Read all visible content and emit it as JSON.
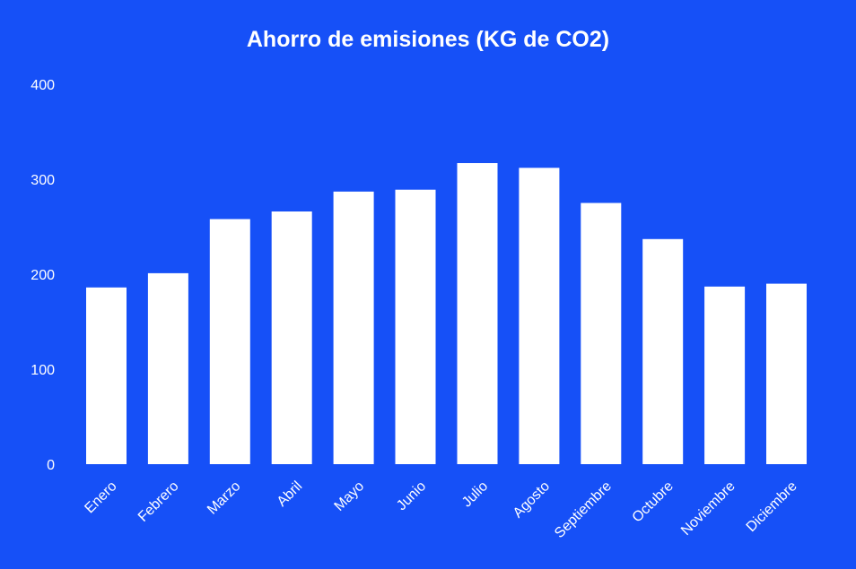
{
  "chart_data": {
    "type": "bar",
    "title": "Ahorro de emisiones (KG de CO2)",
    "xlabel": "",
    "ylabel": "",
    "categories": [
      "Enero",
      "Febrero",
      "Marzo",
      "Abril",
      "Mayo",
      "Junio",
      "Julio",
      "Agosto",
      "Septiembre",
      "Octubre",
      "Noviembre",
      "Diciembre"
    ],
    "values": [
      186,
      201,
      258,
      266,
      287,
      289,
      317,
      312,
      275,
      237,
      187,
      190
    ],
    "ylim": [
      0,
      400
    ],
    "yticks": [
      "0",
      "100",
      "200",
      "300",
      "400"
    ],
    "grid": false,
    "legend": "none",
    "colors": {
      "background": "#1650f7",
      "bar": "#ffffff",
      "text": "#ffffff"
    }
  }
}
